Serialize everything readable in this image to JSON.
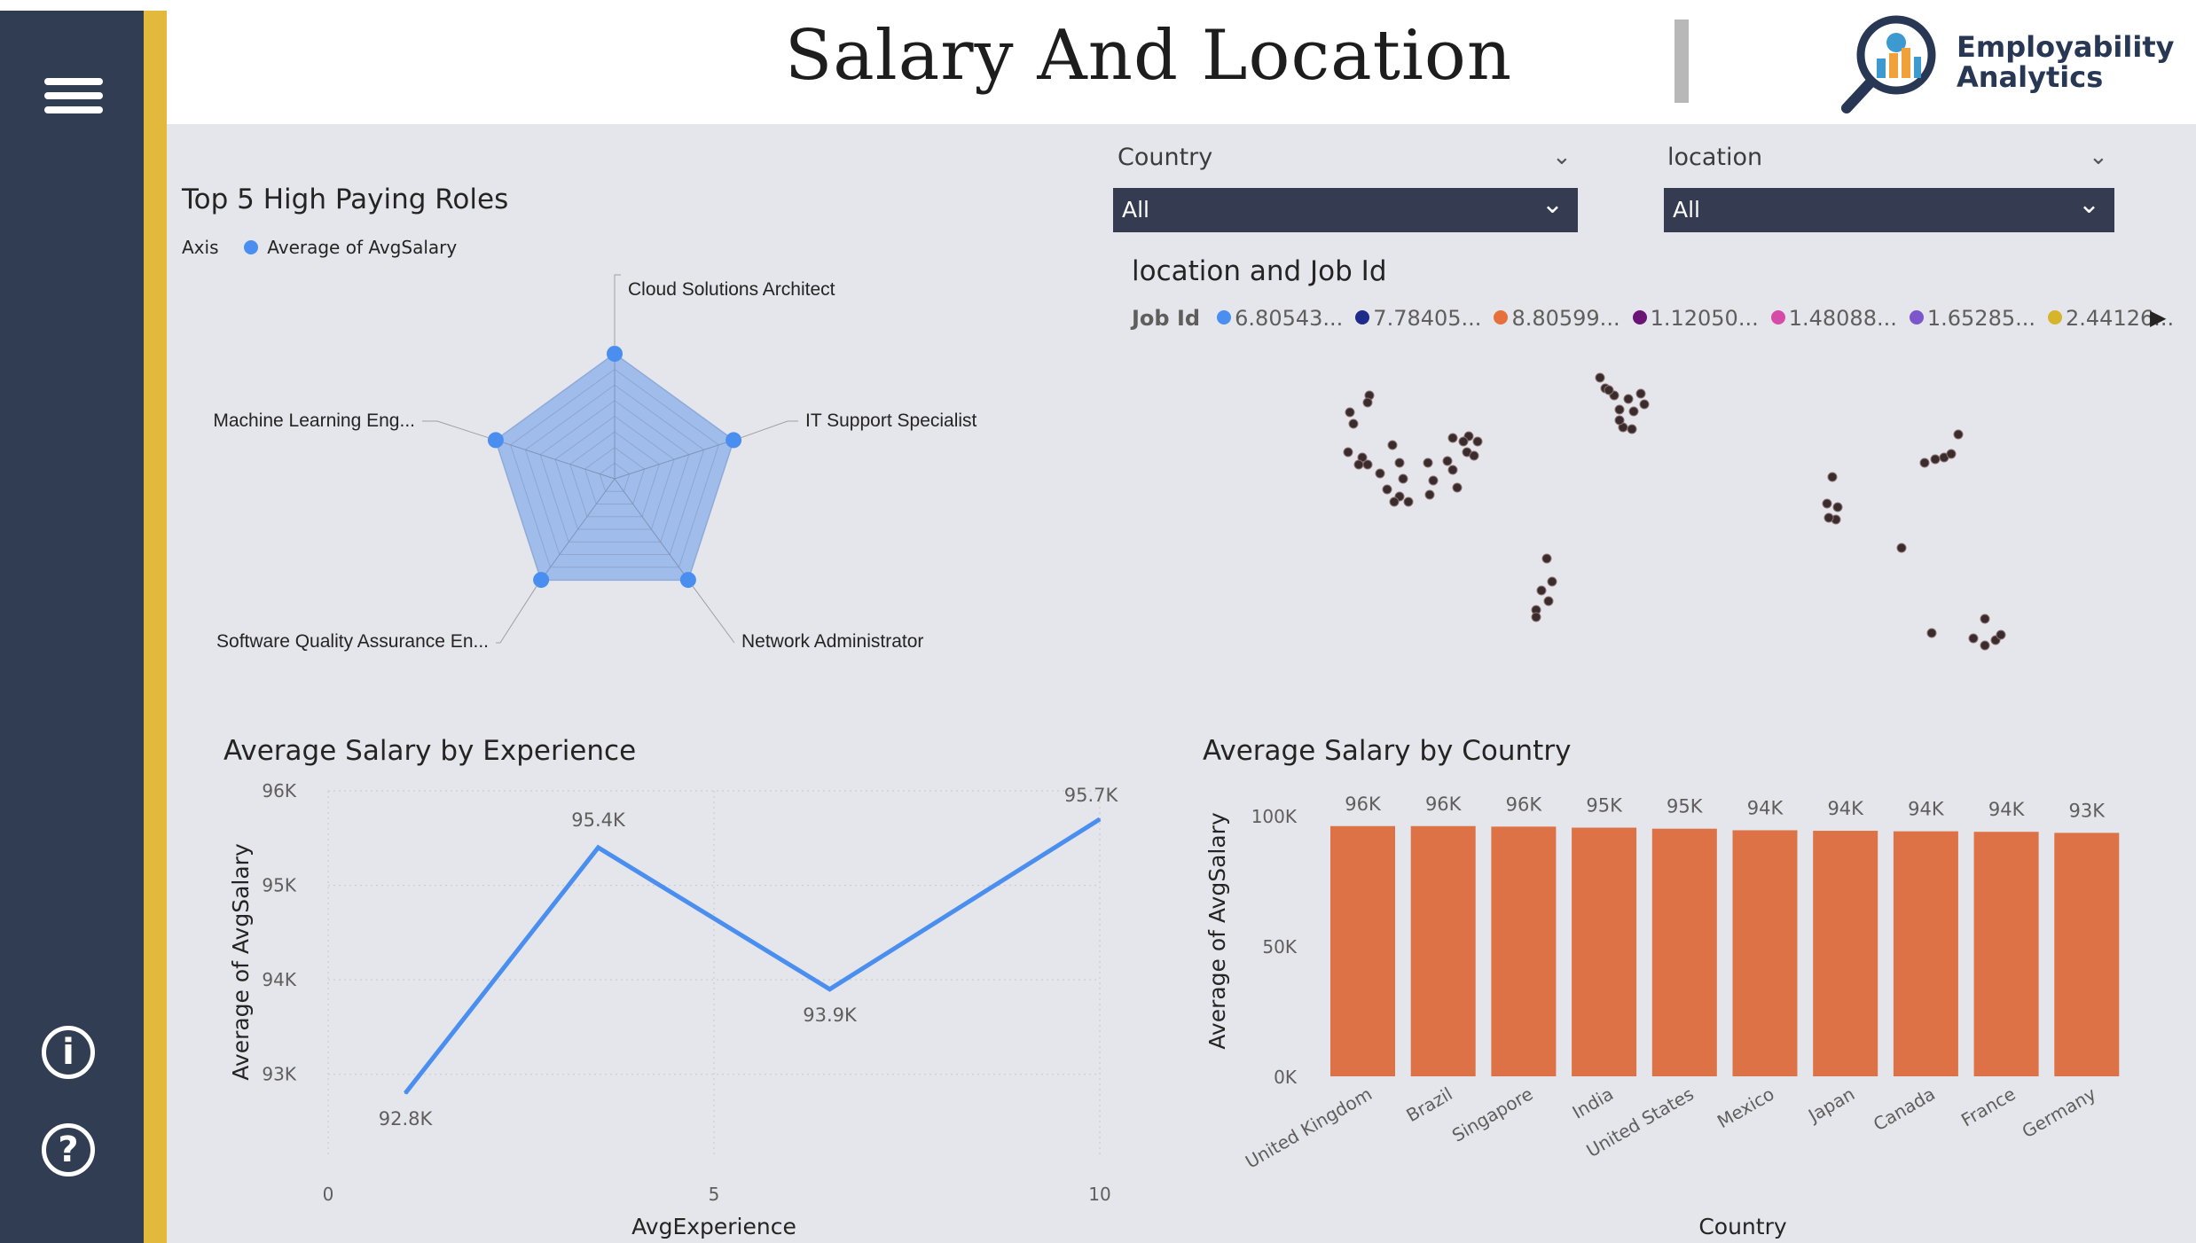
{
  "header": {
    "title": "Salary And Location",
    "logo_line1": "Employability",
    "logo_line2": "Analytics"
  },
  "sidebar": {
    "menu_icon": "hamburger-icon",
    "info_icon": "info-icon",
    "help_icon": "help-icon"
  },
  "slicers": [
    {
      "label": "Country",
      "value": "All"
    },
    {
      "label": "location",
      "value": "All"
    }
  ],
  "radar": {
    "title": "Top 5 High Paying Roles",
    "legend_axis": "Axis",
    "legend_series": "Average of AvgSalary",
    "chart_data": {
      "type": "radar",
      "categories": [
        "Cloud Solutions Architect",
        "IT Support Specialist",
        "Network Administrator",
        "Software Quality Assurance En...",
        "Machine Learning Eng..."
      ],
      "series": [
        {
          "name": "Average of AvgSalary",
          "values": [
            96000,
            96000,
            96000,
            96000,
            96000
          ]
        }
      ]
    }
  },
  "map": {
    "title": "location and Job Id",
    "legend_title": "Job Id",
    "legend": [
      {
        "label": "6.80543...",
        "color": "#4a8ef0"
      },
      {
        "label": "7.78405...",
        "color": "#1e2b8c"
      },
      {
        "label": "8.80599...",
        "color": "#e6703b"
      },
      {
        "label": "1.12050...",
        "color": "#6b1478"
      },
      {
        "label": "1.48088...",
        "color": "#d64aa8"
      },
      {
        "label": "1.65285...",
        "color": "#7b56cc"
      },
      {
        "label": "2.44126...",
        "color": "#d6b42c"
      }
    ],
    "next_icon": "chevron-right-icon"
  },
  "line_chart": {
    "title": "Average Salary by Experience",
    "xlabel": "AvgExperience",
    "ylabel": "Average of AvgSalary",
    "x_ticks": [
      "0",
      "5",
      "10"
    ],
    "y_ticks": [
      "96K",
      "95K",
      "94K",
      "93K"
    ],
    "chart_data": {
      "type": "line",
      "x": [
        1,
        3.5,
        6.5,
        10
      ],
      "y": [
        92800,
        95400,
        93900,
        95700
      ],
      "labels": [
        "92.8K",
        "95.4K",
        "93.9K",
        "95.7K"
      ],
      "xlim": [
        0,
        10
      ],
      "ylim": [
        92500,
        96000
      ],
      "color": "#4a8ef0"
    }
  },
  "bar_chart": {
    "title": "Average Salary by Country",
    "xlabel": "Country",
    "ylabel": "Average of AvgSalary",
    "y_ticks": [
      "100K",
      "50K",
      "0K"
    ],
    "chart_data": {
      "type": "bar",
      "categories": [
        "United Kingdom",
        "Brazil",
        "Singapore",
        "India",
        "United States",
        "Mexico",
        "Japan",
        "Canada",
        "France",
        "Germany"
      ],
      "values": [
        96000,
        96000,
        95800,
        95400,
        95000,
        94400,
        94200,
        94000,
        93800,
        93400
      ],
      "labels": [
        "96K",
        "96K",
        "96K",
        "95K",
        "95K",
        "94K",
        "94K",
        "94K",
        "94K",
        "93K"
      ],
      "ylim": [
        0,
        100000
      ],
      "color": "#dc7245"
    }
  }
}
